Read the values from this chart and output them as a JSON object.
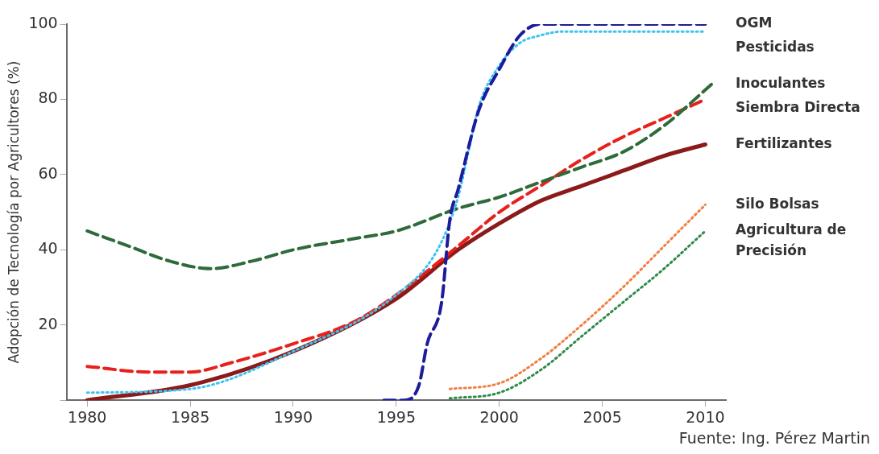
{
  "chart_data": {
    "type": "line",
    "ylabel": "Adopción de Tecnología por Agricultores (%)",
    "xlim": [
      1979,
      2011
    ],
    "xticks": [
      1980,
      1985,
      1990,
      1995,
      2000,
      2005,
      2010
    ],
    "ylim": [
      0,
      100
    ],
    "yticks": [
      {
        "value": 0,
        "label": null
      },
      20,
      40,
      60,
      80,
      100
    ],
    "grid": false,
    "legend": false,
    "marker": "none",
    "annotations": [
      "Fuente: Ing. Pérez Martin"
    ],
    "series": [
      {
        "name": "OGM",
        "color": "#1c1c9c",
        "line_style": "dashed",
        "x": [
          1994.4,
          1995.4,
          1996.1,
          1996.5,
          1997.2,
          1997.6,
          1998,
          1999,
          2000,
          2001,
          2002,
          2004,
          2010
        ],
        "values": [
          0,
          0,
          4,
          15,
          26,
          48,
          56,
          77,
          88,
          97,
          100,
          100,
          100
        ]
      },
      {
        "name": "Pesticidas",
        "color": "#3ec4f0",
        "line_style": "dotted",
        "x": [
          1980,
          1985,
          1990,
          1995,
          1997,
          1998,
          1998.5,
          1999,
          2000,
          2001,
          2002,
          2003,
          2010
        ],
        "values": [
          2,
          3,
          13,
          28,
          40,
          54,
          66,
          78,
          89,
          95,
          97,
          98,
          98
        ]
      },
      {
        "name": "Inoculantes",
        "color": "#2e6b3a",
        "line_style": "dashed",
        "x": [
          1980,
          1982,
          1984,
          1986,
          1988,
          1990,
          1993,
          1995,
          1998,
          2000,
          2002,
          2004,
          2006,
          2008,
          2010.3
        ],
        "values": [
          45,
          41,
          37,
          35,
          37,
          40,
          43,
          45,
          51,
          54,
          58,
          62,
          66,
          73,
          84
        ]
      },
      {
        "name": "Siembra Directa",
        "color": "#e8201c",
        "line_style": "dashed",
        "x": [
          1980,
          1983,
          1985,
          1987,
          1990,
          1993,
          1995,
          1998,
          2000,
          2002,
          2004,
          2006,
          2008,
          2010
        ],
        "values": [
          9,
          7.5,
          7.5,
          10,
          15,
          21,
          28,
          41,
          50,
          57,
          64,
          70,
          75,
          80
        ]
      },
      {
        "name": "Fertilizantes",
        "color": "#8b1a1a",
        "line_style": "solid",
        "x": [
          1980,
          1985,
          1990,
          1995,
          1998,
          2000,
          2002,
          2004,
          2006,
          2008,
          2010
        ],
        "values": [
          0,
          4,
          13,
          27,
          40,
          47,
          53,
          57,
          61,
          65,
          68
        ]
      },
      {
        "name": "Silo Bolsas",
        "color": "#f08040",
        "line_style": "dotted",
        "x": [
          1997.6,
          2000,
          2002,
          2004,
          2006,
          2008,
          2010
        ],
        "values": [
          3,
          4.5,
          11,
          20,
          30,
          41,
          52
        ]
      },
      {
        "name": "Agricultura de Precisión",
        "color": "#2e8b4a",
        "line_style": "dotted",
        "x": [
          1997.6,
          2000,
          2002,
          2004,
          2006,
          2008,
          2010
        ],
        "values": [
          0.5,
          2,
          8,
          17,
          26,
          35,
          45
        ]
      }
    ]
  }
}
